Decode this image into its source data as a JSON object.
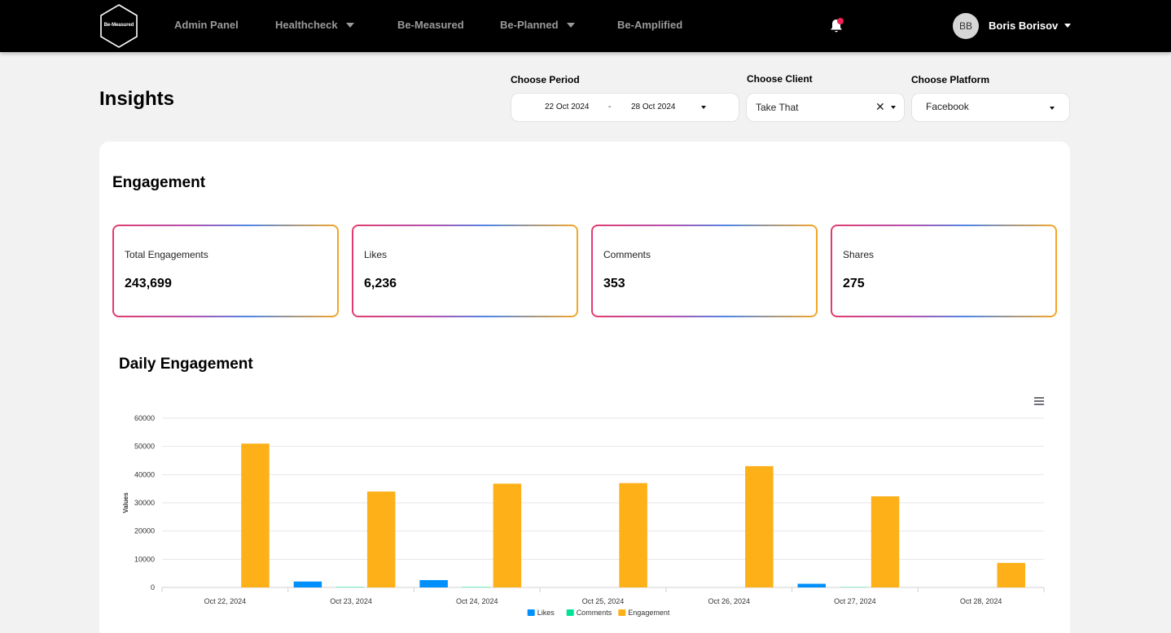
{
  "nav": {
    "logo_text": "Be-Measured",
    "items": [
      {
        "label": "Admin Panel",
        "has_dropdown": false
      },
      {
        "label": "Healthcheck",
        "has_dropdown": true
      },
      {
        "label": "Be-Measured",
        "has_dropdown": false
      },
      {
        "label": "Be-Planned",
        "has_dropdown": true
      },
      {
        "label": "Be-Amplified",
        "has_dropdown": false
      }
    ],
    "notification_icon": "bell-icon",
    "user": {
      "initials": "BB",
      "name": "Boris Borisov"
    }
  },
  "page": {
    "title": "Insights"
  },
  "filters": {
    "period": {
      "label": "Choose Period",
      "start": "22 Oct 2024",
      "separator": "-",
      "end": "28 Oct 2024"
    },
    "client": {
      "label": "Choose Client",
      "value": "Take That",
      "clear": "✕"
    },
    "platform": {
      "label": "Choose Platform",
      "value": "Facebook"
    }
  },
  "engagement": {
    "title": "Engagement",
    "metrics": [
      {
        "label": "Total Engagements",
        "value": "243,699"
      },
      {
        "label": "Likes",
        "value": "6,236"
      },
      {
        "label": "Comments",
        "value": "353"
      },
      {
        "label": "Shares",
        "value": "275"
      }
    ]
  },
  "colors": {
    "likes": "#008ffb",
    "comments": "#00e396",
    "engagement": "#feb019",
    "grid": "#e6e6e6"
  },
  "chart_data": {
    "type": "bar",
    "title": "Daily Engagement",
    "ylabel": "Values",
    "xlabel": "",
    "ylim": [
      0,
      60000
    ],
    "yticks": [
      "0",
      "10000",
      "20000",
      "30000",
      "40000",
      "50000",
      "60000"
    ],
    "categories": [
      "Oct 22, 2024",
      "Oct 23, 2024",
      "Oct 24, 2024",
      "Oct 25, 2024",
      "Oct 26, 2024",
      "Oct 27, 2024",
      "Oct 28, 2024"
    ],
    "series": [
      {
        "name": "Likes",
        "values": [
          0,
          2100,
          2600,
          0,
          0,
          1300,
          0
        ]
      },
      {
        "name": "Comments",
        "values": [
          0,
          150,
          150,
          0,
          0,
          100,
          0
        ]
      },
      {
        "name": "Engagement",
        "values": [
          51000,
          34000,
          36800,
          37000,
          43000,
          32300,
          8700
        ]
      }
    ],
    "legend_position": "bottom",
    "grid": true
  }
}
